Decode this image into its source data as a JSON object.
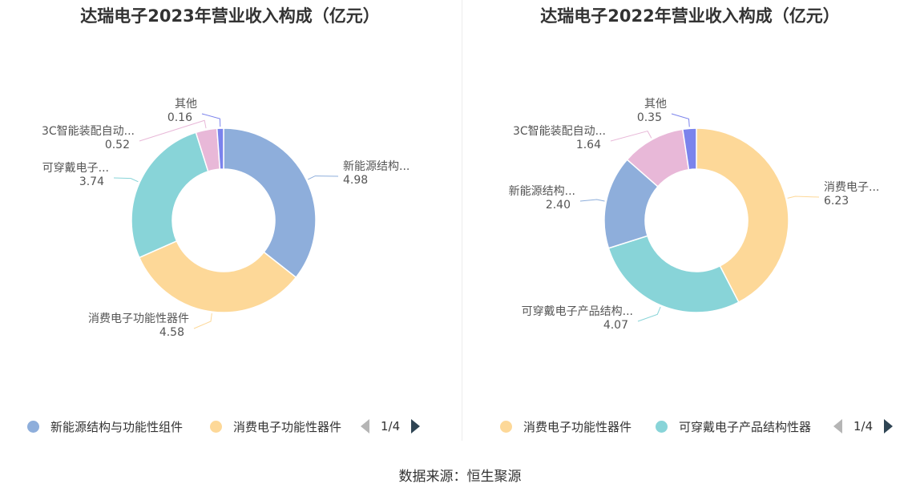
{
  "chart_data": [
    {
      "type": "donut",
      "title": "达瑞电子2023年营业收入构成（亿元）",
      "series": [
        {
          "name": "新能源结构与功能性组件",
          "label": "新能源结构...",
          "value": 4.98,
          "value_label": "4.98",
          "color": "#8eaedb"
        },
        {
          "name": "消费电子功能性器件",
          "label": "消费电子功能性器件",
          "value": 4.58,
          "value_label": "4.58",
          "color": "#fdd898"
        },
        {
          "name": "可穿戴电子...",
          "label": "可穿戴电子...",
          "value": 3.74,
          "value_label": "3.74",
          "color": "#88d4d8"
        },
        {
          "name": "3C智能装配自动...",
          "label": "3C智能装配自动...",
          "value": 0.52,
          "value_label": "0.52",
          "color": "#e8b8d8"
        },
        {
          "name": "其他",
          "label": "其他",
          "value": 0.16,
          "value_label": "0.16",
          "color": "#7b83ec"
        }
      ],
      "legend": {
        "items": [
          {
            "label": "新能源结构与功能性组件",
            "color": "#8eaedb"
          },
          {
            "label": "消费电子功能性器件",
            "color": "#fdd898"
          }
        ],
        "page": "1/4"
      }
    },
    {
      "type": "donut",
      "title": "达瑞电子2022年营业收入构成（亿元）",
      "series": [
        {
          "name": "消费电子功能性器件",
          "label": "消费电子...",
          "value": 6.23,
          "value_label": "6.23",
          "color": "#fdd898"
        },
        {
          "name": "可穿戴电子产品结构性器件",
          "label": "可穿戴电子产品结构...",
          "value": 4.07,
          "value_label": "4.07",
          "color": "#88d4d8"
        },
        {
          "name": "新能源结构...",
          "label": "新能源结构...",
          "value": 2.4,
          "value_label": "2.40",
          "color": "#8eaedb"
        },
        {
          "name": "3C智能装配自动...",
          "label": "3C智能装配自动...",
          "value": 1.64,
          "value_label": "1.64",
          "color": "#e8b8d8"
        },
        {
          "name": "其他",
          "label": "其他",
          "value": 0.35,
          "value_label": "0.35",
          "color": "#7b83ec"
        }
      ],
      "legend": {
        "items": [
          {
            "label": "消费电子功能性器件",
            "color": "#fdd898"
          },
          {
            "label": "可穿戴电子产品结构性器",
            "color": "#88d4d8"
          }
        ],
        "page": "1/4"
      }
    }
  ],
  "source": "数据来源：恒生聚源"
}
